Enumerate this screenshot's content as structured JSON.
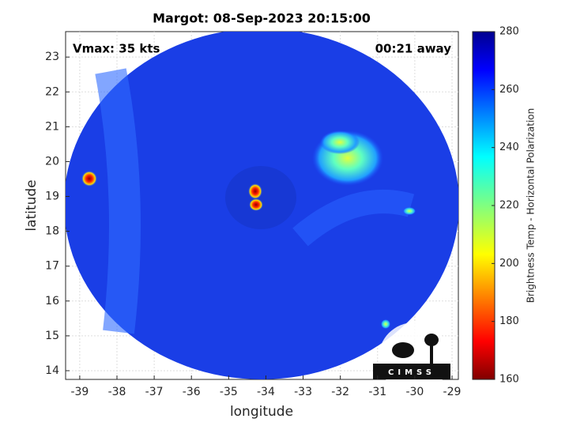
{
  "chart_data": {
    "type": "image",
    "title": "Margot: 08-Sep-2023 20:15:00",
    "annotations": [
      "Vmax: 35 kts",
      "00:21 away"
    ],
    "xlabel": "longitude",
    "ylabel": "latitude",
    "xlim": [
      -39.38,
      -28.83
    ],
    "ylim": [
      13.75,
      23.73
    ],
    "xticks": [
      -39,
      -38,
      -37,
      -36,
      -35,
      -34,
      -33,
      -32,
      -31,
      -30,
      -29
    ],
    "yticks": [
      14,
      15,
      16,
      17,
      18,
      19,
      20,
      21,
      22,
      23
    ],
    "grid": true,
    "colorbar": {
      "label": "Brightness Temp - Horizontal Polarization",
      "lim": [
        160,
        280
      ],
      "ticks": [
        160,
        180,
        200,
        220,
        240,
        260,
        280
      ]
    },
    "logo": "CIMSS"
  }
}
